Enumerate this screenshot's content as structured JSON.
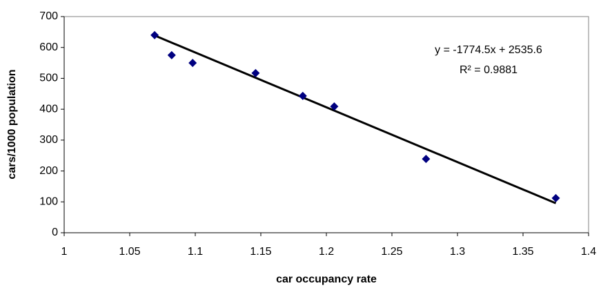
{
  "chart_data": {
    "type": "scatter",
    "x_label": "car occupancy rate",
    "y_label": "cars/1000 population",
    "series": [
      {
        "color": "#000080",
        "x": [
          1.069,
          1.082,
          1.098,
          1.146,
          1.182,
          1.206,
          1.276,
          1.375
        ],
        "values": [
          640,
          575,
          550,
          517,
          443,
          409,
          239,
          112
        ]
      }
    ],
    "trendline": {
      "slope": -1774.5,
      "intercept": 2535.6,
      "color": "#000000",
      "equation": "y = -1774.5x + 2535.6",
      "r_squared": "R² = 0.9881"
    },
    "xlim": [
      1,
      1.4
    ],
    "xticks": [
      1,
      1.05,
      1.1,
      1.15,
      1.2,
      1.25,
      1.3,
      1.35,
      1.4
    ],
    "ylim": [
      0,
      700
    ],
    "yticks": [
      0,
      100,
      200,
      300,
      400,
      500,
      600,
      700
    ],
    "grid": false
  }
}
